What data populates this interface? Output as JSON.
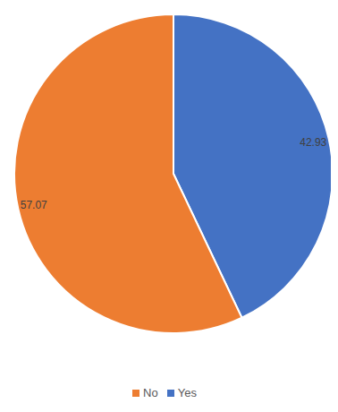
{
  "chart_data": {
    "type": "pie",
    "categories": [
      "Yes",
      "No"
    ],
    "values": [
      42.93,
      57.07
    ],
    "colors": [
      "#4472c4",
      "#ed7d31"
    ],
    "data_labels": true,
    "legend": "bottom"
  }
}
